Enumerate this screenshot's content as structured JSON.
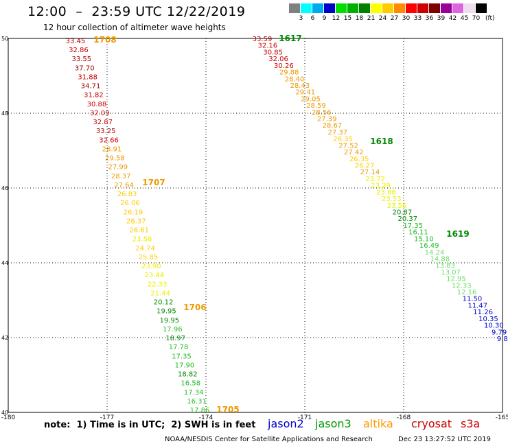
{
  "header": {
    "title": "12:00  –  23:59 UTC 12/22/2019",
    "subtitle": "12 hour collection of altimeter wave heights"
  },
  "legend": {
    "unit": "(ft)",
    "bins": [
      {
        "label": "3",
        "color": "#808080"
      },
      {
        "label": "6",
        "color": "#00ffff"
      },
      {
        "label": "9",
        "color": "#00aaee"
      },
      {
        "label": "12",
        "color": "#0000cc"
      },
      {
        "label": "15",
        "color": "#00dd00"
      },
      {
        "label": "18",
        "color": "#00b000"
      },
      {
        "label": "21",
        "color": "#008000"
      },
      {
        "label": "24",
        "color": "#ffff00"
      },
      {
        "label": "27",
        "color": "#ffcc00"
      },
      {
        "label": "30",
        "color": "#ff8c00"
      },
      {
        "label": "33",
        "color": "#ff0000"
      },
      {
        "label": "36",
        "color": "#cc0000"
      },
      {
        "label": "39",
        "color": "#800000"
      },
      {
        "label": "42",
        "color": "#990099"
      },
      {
        "label": "45",
        "color": "#dd66dd"
      },
      {
        "label": "70",
        "color": "#eeddee"
      },
      {
        "label": "",
        "color": "#000000"
      }
    ]
  },
  "axes": {
    "lon_ticks": [
      "-180",
      "-177",
      "-174",
      "-171",
      "-168",
      "-165"
    ],
    "lat_ticks": [
      "50",
      "48",
      "46",
      "44",
      "42",
      "40"
    ],
    "lon_range": [
      -180,
      -165
    ],
    "lat_range": [
      40,
      50
    ]
  },
  "tracks": {
    "west": {
      "labels": [
        {
          "text": "1708",
          "color": "#ee9900"
        },
        {
          "text": "1707",
          "color": "#ee9900"
        },
        {
          "text": "1706",
          "color": "#ee9900"
        },
        {
          "text": "1705",
          "color": "#ee9900"
        }
      ],
      "values": [
        "33.45",
        "32.86",
        "33.55",
        "37.70",
        "31.88",
        "34.71",
        "31.82",
        "30.88",
        "32.09",
        "32.87",
        "33.25",
        "32.66",
        "28.91",
        "29.58",
        "27.99",
        "28.37",
        "27.64",
        "26.83",
        "26.06",
        "26.19",
        "26.37",
        "26.61",
        "23.58",
        "24.74",
        "25.85",
        "23.90",
        "23.44",
        "22.33",
        "21.44",
        "20.12",
        "19.95",
        "19.95",
        "17.96",
        "18.97",
        "17.78",
        "17.35",
        "17.90",
        "18.82",
        "16.58",
        "17.34",
        "16.31",
        "17.86"
      ]
    },
    "east": {
      "labels": [
        {
          "text": "1617",
          "color": "#008800"
        },
        {
          "text": "1618",
          "color": "#008800"
        },
        {
          "text": "1619",
          "color": "#008800"
        }
      ],
      "values": [
        "33.59",
        "32.16",
        "30.85",
        "32.06",
        "30.26",
        "29.88",
        "28.40",
        "28.43",
        "29.41",
        "29.05",
        "28.59",
        "28.56",
        "27.39",
        "28.67",
        "27.37",
        "26.35",
        "27.52",
        "27.42",
        "26.35",
        "26.27",
        "27.14",
        "23.72",
        "23.29",
        "23.88",
        "23.53",
        "23.56",
        "20.87",
        "20.37",
        "17.35",
        "16.11",
        "15.10",
        "16.49",
        "14.24",
        "14.88",
        "13.83",
        "13.07",
        "12.95",
        "12.33",
        "12.16",
        "11.50",
        "11.47",
        "11.26",
        "10.35",
        "10.30",
        "9.79",
        "9.81"
      ]
    }
  },
  "footer": {
    "note": "note:  1) Time is in UTC;  2) SWH is in feet",
    "satellites": [
      {
        "name": "jason2",
        "color": "#0000cc"
      },
      {
        "name": "jason3",
        "color": "#009900"
      },
      {
        "name": "altika",
        "color": "#ff9900"
      },
      {
        "name": "cryosat",
        "color": "#cc0000"
      },
      {
        "name": "s3a",
        "color": "#cc0000"
      }
    ],
    "credit": "NOAA/NESDIS Center for Satellite Applications and Research",
    "timestamp": "Dec 23 13:27:52 UTC 2019"
  }
}
